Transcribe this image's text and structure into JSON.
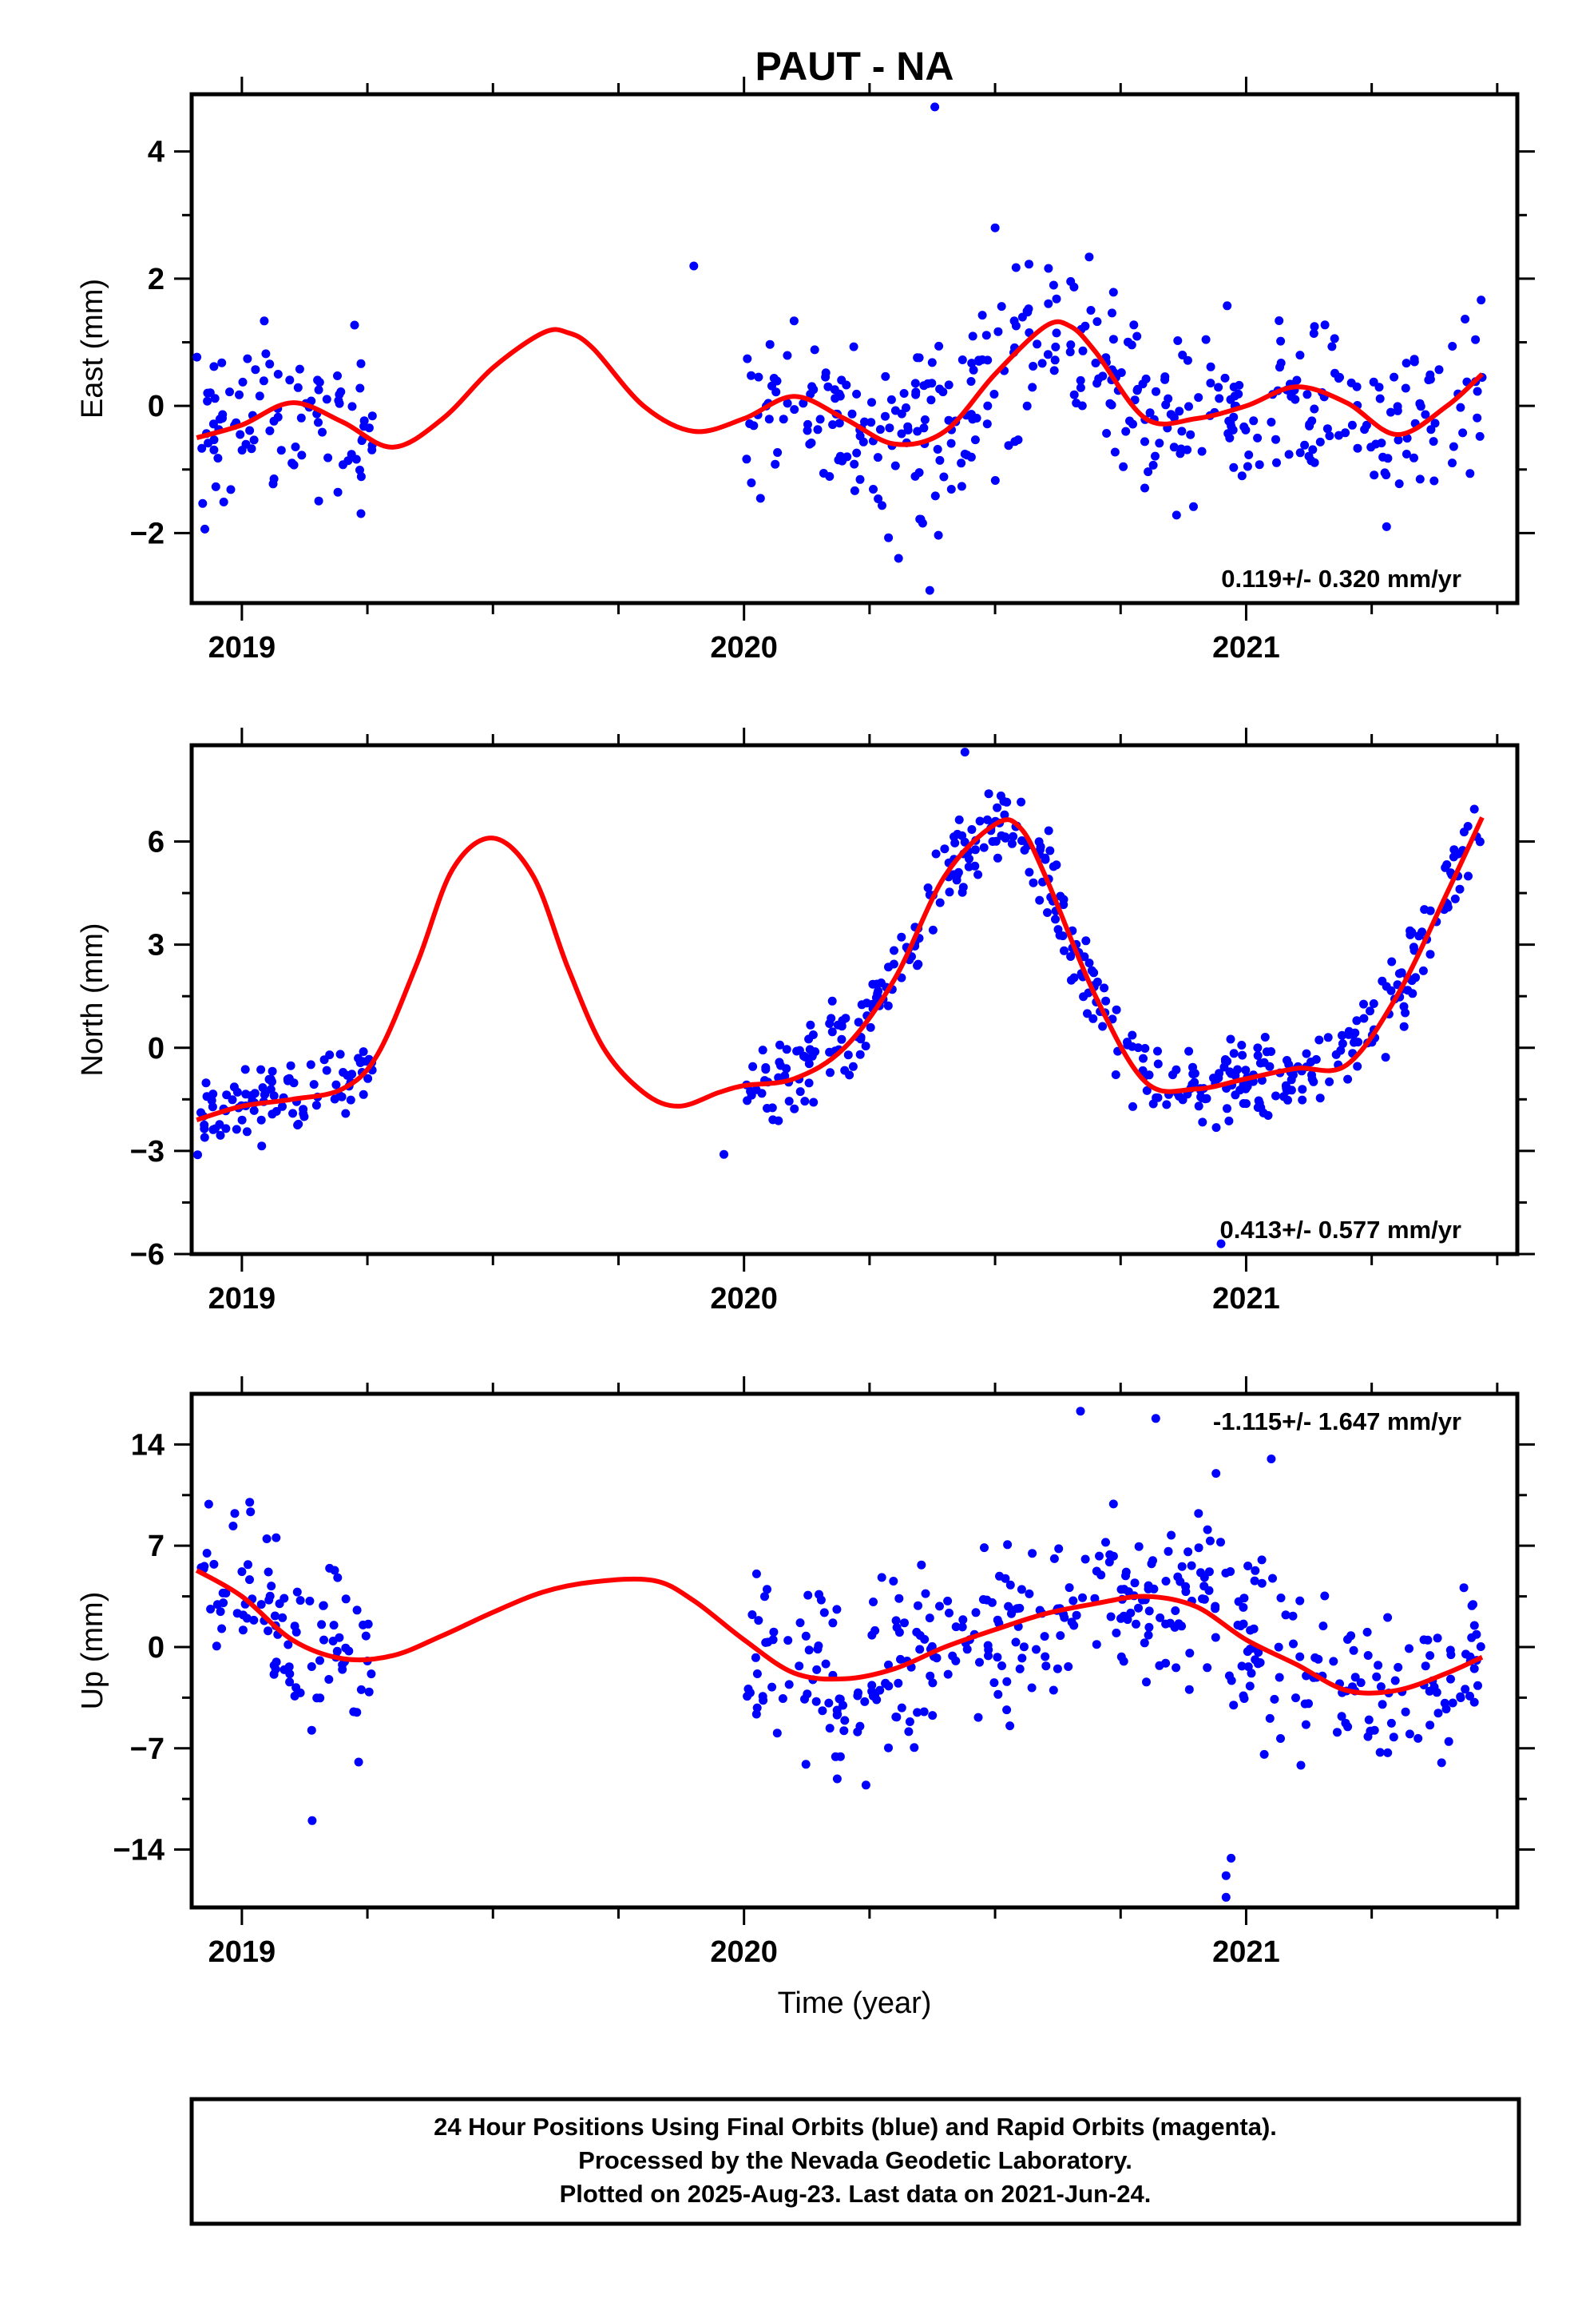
{
  "chart_data": {
    "type": "scatter",
    "title": "PAUT - NA",
    "xlabel": "Time (year)",
    "x_ticks": [
      2019,
      2020,
      2021
    ],
    "xlim": [
      2018.9,
      2021.54
    ],
    "colors": {
      "points": "#0000ff",
      "fit": "#ff0000"
    },
    "panels": [
      {
        "key": "east",
        "ylabel": "East (mm)",
        "ylim": [
          -3.1,
          4.9
        ],
        "yticks": [
          -2,
          0,
          2,
          4
        ],
        "rate": "0.119+/- 0.320 mm/yr",
        "rate_position": "bottom-right",
        "fit": {
          "x": [
            2018.91,
            2019.0,
            2019.1,
            2019.2,
            2019.3,
            2019.4,
            2019.5,
            2019.6,
            2019.65,
            2019.7,
            2019.8,
            2019.9,
            2020.0,
            2020.1,
            2020.2,
            2020.3,
            2020.4,
            2020.5,
            2020.6,
            2020.65,
            2020.7,
            2020.8,
            2020.9,
            2021.0,
            2021.1,
            2021.2,
            2021.3,
            2021.4,
            2021.47
          ],
          "y": [
            -0.5,
            -0.3,
            0.05,
            -0.25,
            -0.65,
            -0.2,
            0.6,
            1.15,
            1.15,
            0.9,
            0.0,
            -0.4,
            -0.2,
            0.15,
            -0.2,
            -0.6,
            -0.4,
            0.5,
            1.25,
            1.25,
            0.85,
            -0.2,
            -0.2,
            0.0,
            0.3,
            0.05,
            -0.45,
            0.0,
            0.5
          ]
        },
        "segments": [
          {
            "start": 2018.91,
            "end": 2019.26,
            "n": 95,
            "amp": 0.9
          },
          {
            "start": 2020.0,
            "end": 2021.47,
            "n": 400,
            "amp": 0.85
          }
        ],
        "extra_points": [
          {
            "x": 2020.38,
            "y": 4.7
          },
          {
            "x": 2020.37,
            "y": -2.9
          },
          {
            "x": 2020.5,
            "y": 2.8
          },
          {
            "x": 2019.9,
            "y": 2.2
          }
        ]
      },
      {
        "key": "north",
        "ylabel": "North (mm)",
        "ylim": [
          -6.0,
          8.8
        ],
        "yticks": [
          -6,
          -3,
          0,
          3,
          6
        ],
        "rate": "0.413+/- 0.577 mm/yr",
        "rate_position": "bottom-right",
        "fit": {
          "x": [
            2018.91,
            2019.0,
            2019.1,
            2019.2,
            2019.27,
            2019.35,
            2019.42,
            2019.5,
            2019.58,
            2019.65,
            2019.72,
            2019.8,
            2019.87,
            2019.95,
            2020.0,
            2020.1,
            2020.2,
            2020.3,
            2020.4,
            2020.5,
            2020.55,
            2020.6,
            2020.7,
            2020.8,
            2020.9,
            2021.0,
            2021.1,
            2021.2,
            2021.3,
            2021.4,
            2021.47
          ],
          "y": [
            -2.1,
            -1.7,
            -1.5,
            -1.2,
            -0.2,
            2.5,
            5.2,
            6.1,
            5.0,
            2.3,
            0.0,
            -1.3,
            -1.7,
            -1.3,
            -1.1,
            -0.9,
            0.0,
            2.0,
            5.0,
            6.5,
            6.4,
            5.0,
            1.5,
            -1.0,
            -1.2,
            -0.9,
            -0.6,
            -0.5,
            1.5,
            4.5,
            6.7
          ]
        },
        "segments": [
          {
            "start": 2018.91,
            "end": 2019.26,
            "n": 95,
            "amp": 0.7
          },
          {
            "start": 2020.0,
            "end": 2021.47,
            "n": 420,
            "amp": 0.75
          }
        ],
        "extra_points": [
          {
            "x": 2020.44,
            "y": 8.6
          },
          {
            "x": 2020.95,
            "y": -5.7
          },
          {
            "x": 2019.96,
            "y": -3.1
          }
        ]
      },
      {
        "key": "up",
        "ylabel": "Up (mm)",
        "ylim": [
          -18.0,
          17.5
        ],
        "yticks": [
          -14,
          -7,
          0,
          7,
          14
        ],
        "rate": "-1.115+/- 1.647 mm/yr",
        "rate_position": "top-right",
        "fit": {
          "x": [
            2018.91,
            2019.0,
            2019.1,
            2019.2,
            2019.3,
            2019.4,
            2019.5,
            2019.6,
            2019.7,
            2019.82,
            2019.9,
            2020.0,
            2020.1,
            2020.2,
            2020.3,
            2020.4,
            2020.5,
            2020.6,
            2020.7,
            2020.8,
            2020.9,
            2021.0,
            2021.1,
            2021.2,
            2021.3,
            2021.4,
            2021.47
          ],
          "y": [
            5.3,
            3.5,
            0.5,
            -0.8,
            -0.6,
            0.8,
            2.4,
            3.8,
            4.5,
            4.6,
            3.2,
            0.5,
            -1.8,
            -2.2,
            -1.5,
            0.0,
            1.2,
            2.3,
            3.0,
            3.5,
            2.8,
            0.5,
            -1.2,
            -3.0,
            -3.0,
            -1.8,
            -0.7
          ]
        },
        "segments": [
          {
            "start": 2018.91,
            "end": 2019.26,
            "n": 95,
            "amp": 3.8
          },
          {
            "start": 2020.0,
            "end": 2021.47,
            "n": 400,
            "amp": 3.6
          }
        ],
        "extra_points": [
          {
            "x": 2020.67,
            "y": 16.3
          },
          {
            "x": 2020.82,
            "y": 15.8
          },
          {
            "x": 2020.96,
            "y": -17.3
          },
          {
            "x": 2020.96,
            "y": -15.8
          },
          {
            "x": 2020.97,
            "y": -14.6
          },
          {
            "x": 2019.14,
            "y": -12.0
          },
          {
            "x": 2021.05,
            "y": 13.0
          },
          {
            "x": 2020.94,
            "y": 12.0
          }
        ]
      }
    ]
  },
  "footer": {
    "line1": "24 Hour Positions Using Final Orbits (blue) and Rapid Orbits (magenta).",
    "line2": "Processed by the Nevada Geodetic Laboratory.",
    "line3": "Plotted on 2025-Aug-23. Last data on 2021-Jun-24."
  }
}
